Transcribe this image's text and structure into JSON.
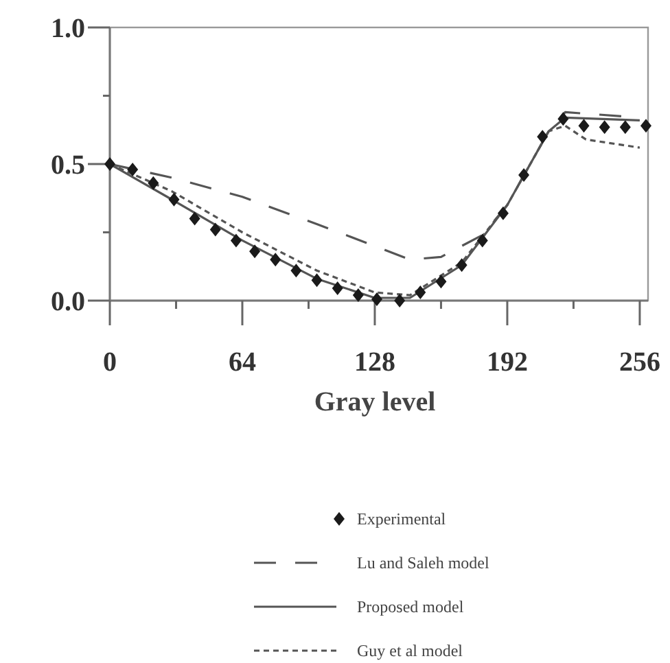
{
  "chart_data": {
    "type": "line",
    "xlabel": "Gray level",
    "xlim": [
      0,
      260
    ],
    "ylim": [
      0,
      1
    ],
    "xticks": [
      0,
      {
        "value": 32,
        "label": null
      },
      64,
      {
        "value": 96,
        "label": null
      },
      128,
      {
        "value": 160,
        "label": null
      },
      192,
      {
        "value": 224,
        "label": null
      },
      256
    ],
    "yticks": [
      {
        "value": 0,
        "label": "0.0"
      },
      {
        "value": 0.25,
        "label": null
      },
      0.5,
      {
        "value": 0.75,
        "label": null
      },
      {
        "value": 1,
        "label": "1.0"
      }
    ],
    "grid": false,
    "legend": "bottom",
    "series": [
      {
        "name": "Experimental",
        "type": "scatter",
        "marker": "diamond",
        "color": "#1a1a1a",
        "x": [
          0,
          11,
          21,
          31,
          41,
          51,
          61,
          70,
          80,
          90,
          100,
          110,
          120,
          129,
          140,
          150,
          160,
          170,
          180,
          190,
          200,
          209,
          219,
          229,
          239,
          249,
          259
        ],
        "values": [
          0.5,
          0.48,
          0.43,
          0.37,
          0.3,
          0.26,
          0.22,
          0.18,
          0.15,
          0.11,
          0.075,
          0.045,
          0.02,
          0.005,
          0,
          0.03,
          0.07,
          0.13,
          0.22,
          0.32,
          0.46,
          0.6,
          0.665,
          0.64,
          0.635,
          0.635,
          0.64
        ]
      },
      {
        "name": "Lu and Saleh model",
        "line_style": "longdash",
        "color": "#555555",
        "x": [
          0,
          30,
          64,
          100,
          128,
          145,
          160,
          180,
          192,
          212,
          220,
          256
        ],
        "values": [
          0.5,
          0.45,
          0.38,
          0.28,
          0.2,
          0.15,
          0.16,
          0.24,
          0.35,
          0.62,
          0.69,
          0.67
        ]
      },
      {
        "name": "Proposed model",
        "line_style": "solid",
        "color": "#555555",
        "x": [
          0,
          30,
          64,
          100,
          128,
          145,
          170,
          192,
          212,
          220,
          256
        ],
        "values": [
          0.5,
          0.37,
          0.22,
          0.08,
          0.01,
          0.01,
          0.13,
          0.35,
          0.62,
          0.67,
          0.66
        ]
      },
      {
        "name": "Guy et al model",
        "line_style": "dashed",
        "color": "#555555",
        "x": [
          0,
          30,
          64,
          100,
          128,
          145,
          170,
          192,
          212,
          220,
          230,
          256
        ],
        "values": [
          0.5,
          0.4,
          0.25,
          0.11,
          0.03,
          0.02,
          0.14,
          0.35,
          0.62,
          0.64,
          0.59,
          0.56
        ]
      }
    ]
  }
}
